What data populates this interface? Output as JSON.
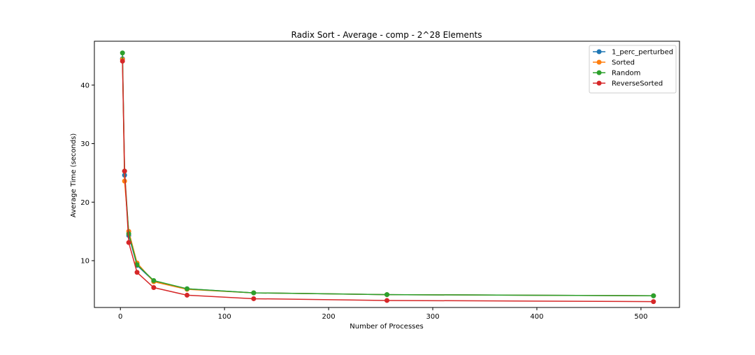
{
  "chart_data": {
    "type": "line",
    "title": "Radix Sort - Average - comp - 2^28 Elements",
    "xlabel": "Number of Processes",
    "ylabel": "Average Time (seconds)",
    "xlim": [
      -25,
      537
    ],
    "ylim": [
      2.0,
      47.5
    ],
    "xticks": [
      0,
      100,
      200,
      300,
      400,
      500
    ],
    "yticks": [
      10,
      20,
      30,
      40
    ],
    "x": [
      2,
      4,
      8,
      16,
      32,
      64,
      128,
      256,
      512
    ],
    "grid": false,
    "legend_position": "top-right",
    "series": [
      {
        "name": "1_perc_perturbed",
        "color": "#1f77b4",
        "values": [
          44.5,
          24.6,
          14.3,
          9.2,
          6.5,
          5.2,
          4.5,
          4.2,
          4.0
        ]
      },
      {
        "name": "Sorted",
        "color": "#ff7f0e",
        "values": [
          44.4,
          23.6,
          15.0,
          9.6,
          6.4,
          5.1,
          4.5,
          4.2,
          4.0
        ]
      },
      {
        "name": "Random",
        "color": "#2ca02c",
        "values": [
          45.5,
          25.3,
          14.6,
          9.3,
          6.6,
          5.2,
          4.5,
          4.2,
          4.0
        ]
      },
      {
        "name": "ReverseSorted",
        "color": "#d62728",
        "values": [
          44.1,
          25.3,
          13.1,
          8.0,
          5.4,
          4.1,
          3.5,
          3.2,
          3.0
        ]
      }
    ]
  }
}
